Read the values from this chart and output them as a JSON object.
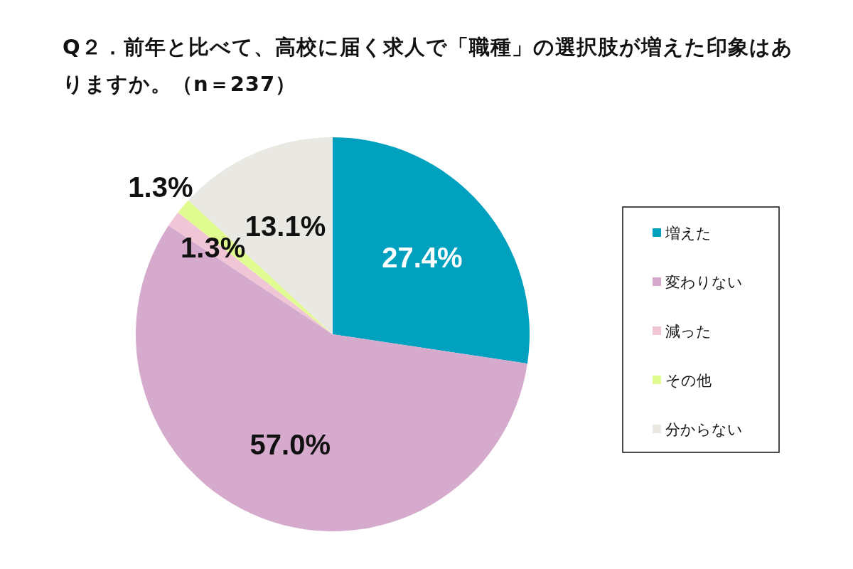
{
  "chart_data": {
    "type": "pie",
    "title": "Q２．前年と比べて、高校に届く求人で「職種」の選択肢が増えた印象はありますか。（n＝237）",
    "categories": [
      "増えた",
      "変わりない",
      "減った",
      "その他",
      "分からない"
    ],
    "values": [
      27.4,
      57.0,
      1.3,
      1.3,
      13.1
    ],
    "value_labels": [
      "27.4%",
      "57.0%",
      "1.3%",
      "1.3%",
      "13.1%"
    ],
    "colors": [
      "#00a0bf",
      "#d5aacd",
      "#f0c6d6",
      "#e0fb8f",
      "#e9e8e2"
    ],
    "legend": "right"
  }
}
